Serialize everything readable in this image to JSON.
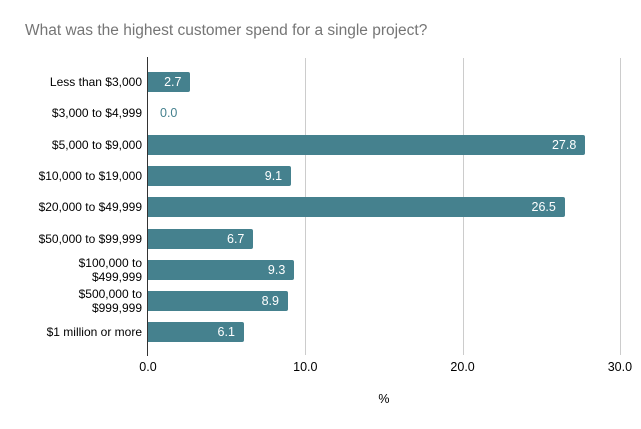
{
  "title": "What was the highest customer spend for a single project?",
  "chart_data": {
    "type": "bar",
    "orientation": "horizontal",
    "title": "What was the highest customer spend for a single project?",
    "categories": [
      "Less than $3,000",
      "$3,000 to $4,999",
      "$5,000 to $9,000",
      "$10,000 to $19,000",
      "$20,000 to $49,999",
      "$50,000 to $99,999",
      "$100,000 to $499,999",
      "$500,000 to $999,999",
      "$1 million or more"
    ],
    "category_label_lines": [
      [
        "Less than $3,000"
      ],
      [
        "$3,000 to $4,999"
      ],
      [
        "$5,000 to $9,000"
      ],
      [
        "$10,000 to $19,000"
      ],
      [
        "$20,000 to $49,999"
      ],
      [
        "$50,000 to $99,999"
      ],
      [
        "$100,000 to",
        "$499,999"
      ],
      [
        "$500,000 to",
        "$999,999"
      ],
      [
        "$1 million or more"
      ]
    ],
    "values": [
      2.7,
      0.0,
      27.8,
      9.1,
      26.5,
      6.7,
      9.3,
      8.9,
      6.1
    ],
    "value_labels": [
      "2.7",
      "0.0",
      "27.8",
      "9.1",
      "26.5",
      "6.7",
      "9.3",
      "8.9",
      "6.1"
    ],
    "xlabel": "%",
    "x_ticks": [
      0,
      10,
      20,
      30
    ],
    "x_tick_labels": [
      "0.0",
      "10.0",
      "20.0",
      "30.0"
    ],
    "xlim": [
      0,
      30.6
    ],
    "grid": true,
    "legend": "none",
    "colors": {
      "bar": "#45818E",
      "value_label_inside": "#FFFFFF",
      "value_label_zero": "#45818E",
      "title": "#757575",
      "gridline": "#CCCCCC",
      "axis_line": "#333333",
      "tick_label": "#000000"
    }
  }
}
